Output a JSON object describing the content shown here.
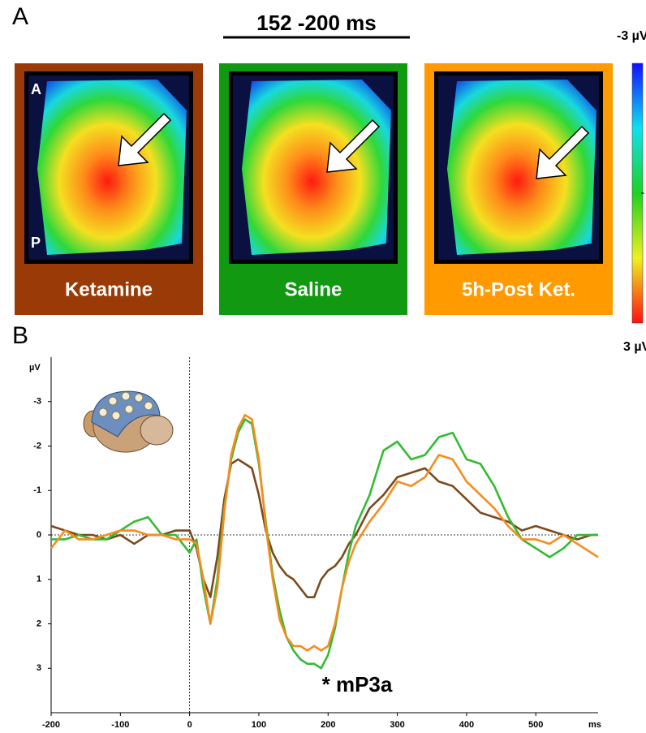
{
  "panel_a": {
    "letter": "A",
    "time_window": "152 -200 ms",
    "colorbar_labels": [
      "-3 µV",
      "3 µV"
    ],
    "map_labels": [
      "A",
      "P"
    ]
  },
  "panel_b": {
    "letter": "B"
  },
  "chart_data": {
    "type": "line",
    "ylabel": "µV",
    "xlabel": "ms",
    "annotation": "* mP3a",
    "xlim": [
      -200,
      590
    ],
    "xticks": [
      -200,
      -100,
      0,
      100,
      200,
      300,
      400,
      500
    ],
    "ylim": [
      -4,
      4
    ],
    "y_inverted": true,
    "yticks": [
      -3,
      -2,
      -1,
      0,
      1,
      2,
      3
    ],
    "x": [
      -200,
      -180,
      -160,
      -140,
      -120,
      -100,
      -80,
      -60,
      -40,
      -20,
      0,
      10,
      20,
      30,
      40,
      50,
      60,
      70,
      80,
      90,
      100,
      110,
      120,
      130,
      140,
      150,
      160,
      170,
      180,
      190,
      200,
      210,
      220,
      230,
      240,
      260,
      280,
      300,
      320,
      340,
      360,
      380,
      400,
      420,
      440,
      460,
      480,
      500,
      520,
      540,
      560,
      580,
      590
    ],
    "series": [
      {
        "name": "Ketamine",
        "color": "#7b4a1d",
        "frame": "#9a3a07",
        "values": [
          -0.2,
          -0.1,
          0.0,
          0.0,
          0.1,
          0.0,
          0.2,
          0.0,
          0.0,
          -0.1,
          -0.1,
          0.3,
          1.0,
          1.4,
          0.5,
          -0.8,
          -1.6,
          -1.7,
          -1.6,
          -1.5,
          -0.9,
          -0.1,
          0.4,
          0.7,
          0.9,
          1.0,
          1.2,
          1.4,
          1.4,
          1.0,
          0.8,
          0.7,
          0.5,
          0.2,
          0.0,
          -0.6,
          -0.9,
          -1.3,
          -1.4,
          -1.5,
          -1.2,
          -1.1,
          -0.8,
          -0.5,
          -0.4,
          -0.3,
          -0.1,
          -0.2,
          -0.1,
          0.0,
          0.1,
          0.0,
          0.0
        ]
      },
      {
        "name": "Saline",
        "color": "#33bb33",
        "frame": "#119911",
        "values": [
          0.1,
          0.1,
          0.0,
          0.1,
          0.1,
          -0.1,
          -0.3,
          -0.4,
          0.0,
          0.0,
          0.4,
          0.1,
          1.2,
          2.0,
          1.0,
          -0.6,
          -1.7,
          -2.3,
          -2.6,
          -2.5,
          -1.6,
          -0.3,
          0.9,
          1.7,
          2.3,
          2.6,
          2.8,
          2.9,
          2.9,
          3.0,
          2.7,
          2.1,
          1.2,
          0.4,
          -0.2,
          -0.9,
          -1.9,
          -2.1,
          -1.7,
          -1.8,
          -2.2,
          -2.3,
          -1.7,
          -1.6,
          -1.1,
          -0.4,
          0.1,
          0.3,
          0.5,
          0.3,
          0.0,
          0.0,
          0.0
        ]
      },
      {
        "name": "5h-Post Ket.",
        "color": "#f68c1f",
        "frame": "#ff9a00",
        "values": [
          0.3,
          -0.1,
          0.1,
          0.1,
          0.0,
          -0.1,
          -0.1,
          0.0,
          0.0,
          0.1,
          0.1,
          0.2,
          1.0,
          2.0,
          1.2,
          -0.5,
          -1.8,
          -2.4,
          -2.7,
          -2.6,
          -1.7,
          -0.2,
          1.0,
          1.9,
          2.3,
          2.5,
          2.5,
          2.6,
          2.5,
          2.6,
          2.5,
          2.0,
          1.2,
          0.6,
          0.2,
          -0.3,
          -0.7,
          -1.2,
          -1.1,
          -1.3,
          -1.8,
          -1.7,
          -1.2,
          -0.9,
          -0.6,
          -0.2,
          0.1,
          0.1,
          0.2,
          0.0,
          0.2,
          0.4,
          0.5
        ]
      }
    ]
  }
}
